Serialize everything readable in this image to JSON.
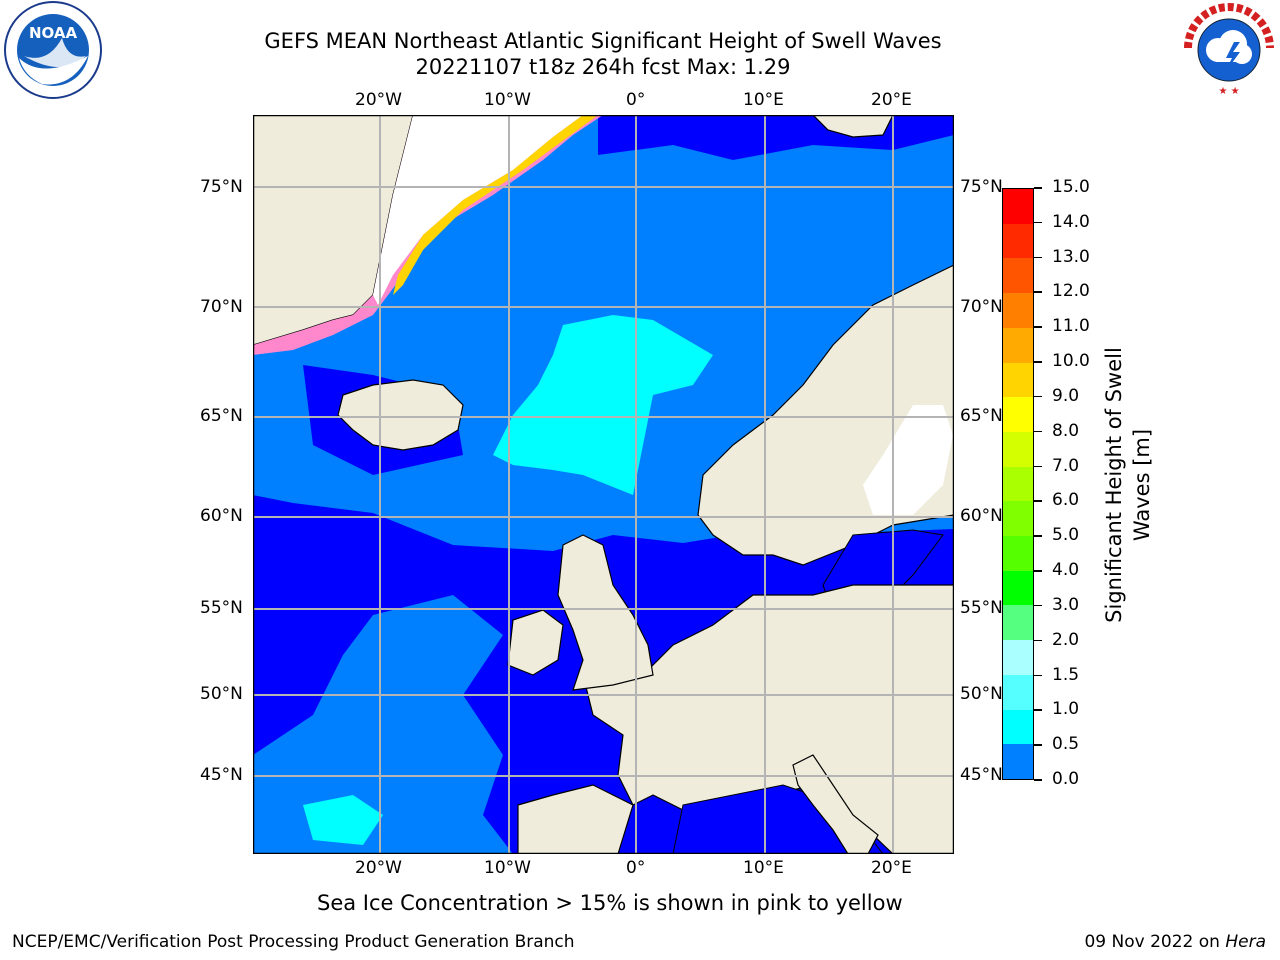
{
  "header": {
    "title_line1": "GEFS MEAN Northeast Atlantic Significant Height of Swell Waves",
    "title_line2": "20221107 t18z 264h fcst   Max: 1.29"
  },
  "logos": {
    "left": {
      "label": "NOAA",
      "ring_text": "NATIONAL OCEANIC AND ATMOSPHERIC ADMINISTRATION · U.S. DEPARTMENT OF COMMERCE"
    },
    "right": {
      "ring_text": "NATIONAL WEATHER SERVICE"
    }
  },
  "map": {
    "lon_labels": [
      "20°W",
      "10°W",
      "0°",
      "10°E",
      "20°E"
    ],
    "lat_labels": [
      "75°N",
      "70°N",
      "65°N",
      "60°N",
      "55°N",
      "50°N",
      "45°N"
    ],
    "colors": {
      "land": "#efecdc",
      "deep": "#0000ff",
      "mid": "#0080ff",
      "cyan": "#00ffff",
      "grid": "#b4b4b4"
    }
  },
  "colorbar": {
    "label": "Significant Height of Swell Waves [m]",
    "ticks": [
      "15.0",
      "14.0",
      "13.0",
      "12.0",
      "11.0",
      "10.0",
      "9.0",
      "8.0",
      "7.0",
      "6.0",
      "5.0",
      "4.0",
      "3.0",
      "2.0",
      "1.5",
      "1.0",
      "0.5",
      "0.0"
    ],
    "colors": [
      "#ff0000",
      "#ff2a00",
      "#ff5500",
      "#ff8000",
      "#ffaa00",
      "#ffd400",
      "#ffff00",
      "#d4ff00",
      "#aaff00",
      "#80ff00",
      "#55ff00",
      "#00ff00",
      "#55ff80",
      "#aaffff",
      "#55ffff",
      "#00ffff",
      "#0080ff",
      "#0000ff"
    ]
  },
  "caption": "Sea Ice Concentration > 15% is shown in pink to yellow",
  "footer": {
    "left": "NCEP/EMC/Verification Post Processing Product Generation Branch",
    "right_prefix": "09 Nov 2022 on ",
    "right_host": "Hera"
  }
}
